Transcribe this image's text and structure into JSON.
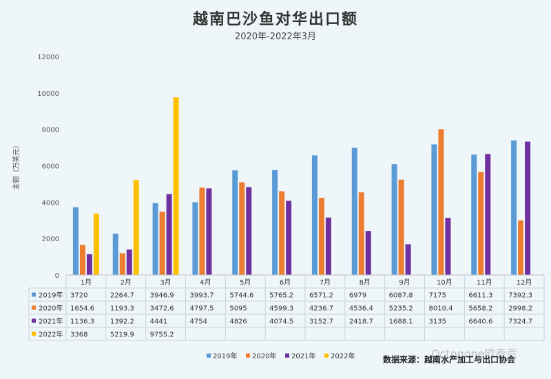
{
  "chart_data": {
    "type": "bar",
    "title": "越南巴沙鱼对华出口额",
    "subtitle": "2020年-2022年3月",
    "ylabel": "金额（万美元）",
    "ylim": [
      0,
      12000
    ],
    "yticks": [
      0,
      2000,
      4000,
      6000,
      8000,
      10000,
      12000
    ],
    "grid": false,
    "legend": "bottom-center",
    "categories": [
      "1月",
      "2月",
      "3月",
      "4月",
      "5月",
      "6月",
      "7月",
      "8月",
      "9月",
      "10月",
      "11月",
      "12月"
    ],
    "series": [
      {
        "name": "2019年",
        "color": "#5b9bd5",
        "values": [
          3720,
          2264.7,
          3946.9,
          3993.7,
          5744.6,
          5765.2,
          6571.2,
          6979,
          6087.8,
          7175,
          6611.3,
          7392.3
        ]
      },
      {
        "name": "2020年",
        "color": "#ed7d31",
        "values": [
          1654.6,
          1193.3,
          3472.6,
          4797.5,
          5095,
          4599.3,
          4236.7,
          4536.4,
          5235.2,
          8010.4,
          5658.2,
          2998.2
        ]
      },
      {
        "name": "2021年",
        "color": "#7030a0",
        "values": [
          1136.3,
          1392.2,
          4441,
          4754,
          4826,
          4074.5,
          3152.7,
          2418.7,
          1688.1,
          3135,
          6640.6,
          7324.7
        ]
      },
      {
        "name": "2022年",
        "color": "#ffc000",
        "values": [
          3368,
          5219.9,
          9755.2,
          null,
          null,
          null,
          null,
          null,
          null,
          null,
          null,
          null
        ]
      }
    ],
    "table_values": [
      [
        "3720",
        "2264.7",
        "3946.9",
        "3993.7",
        "5744.6",
        "5765.2",
        "6571.2",
        "6979",
        "6087.8",
        "7175",
        "6611.3",
        "7392.3"
      ],
      [
        "1654.6",
        "1193.3",
        "3472.6",
        "4797.5",
        "5095",
        "4599.3",
        "4236.7",
        "4536.4",
        "5235.2",
        "8010.4",
        "5658.2",
        "2998.2"
      ],
      [
        "1136.3",
        "1392.2",
        "4441",
        "4754",
        "4826",
        "4074.5",
        "3152.7",
        "2418.7",
        "1688.1",
        "3135",
        "6640.6",
        "7324.7"
      ],
      [
        "3368",
        "5219.9",
        "9755.2",
        "",
        "",
        "",
        "",
        "",
        "",
        "",
        "",
        ""
      ]
    ]
  },
  "source": "数据来源：越南水产加工与出口协会",
  "watermark": "Octogone欧泰贡"
}
